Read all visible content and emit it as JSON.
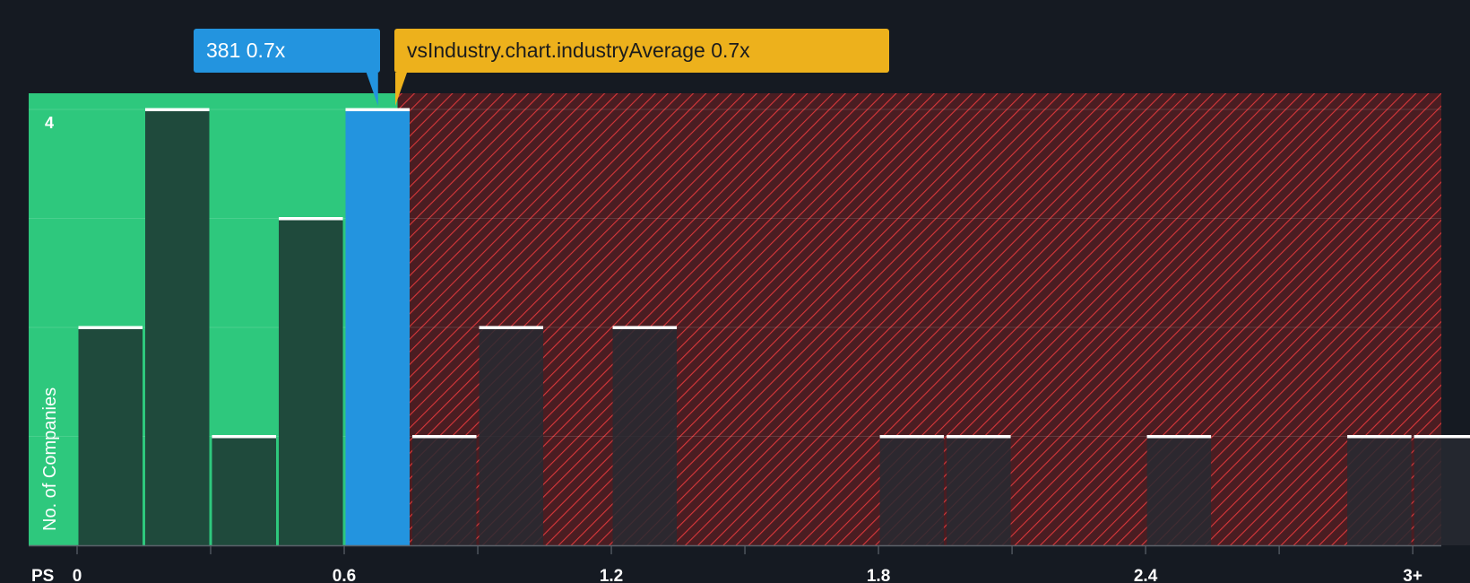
{
  "chart_data": {
    "type": "bar",
    "title": "",
    "xlabel": "PS",
    "ylabel": "No. of Companies",
    "xlim": [
      0,
      3.05
    ],
    "ylim": [
      0,
      4
    ],
    "x_ticks": [
      0,
      0.6,
      1.2,
      1.8,
      2.4,
      3
    ],
    "x_tick_labels": [
      "0",
      "0.6",
      "1.2",
      "1.8",
      "2.4",
      "3+"
    ],
    "y_tick_labels": [
      {
        "value": 4,
        "label": "4"
      }
    ],
    "bin_width": 0.15,
    "bins": [
      {
        "start": 0.0,
        "count": 2
      },
      {
        "start": 0.15,
        "count": 4
      },
      {
        "start": 0.3,
        "count": 1
      },
      {
        "start": 0.45,
        "count": 3
      },
      {
        "start": 0.6,
        "count": 4,
        "highlight": true
      },
      {
        "start": 0.75,
        "count": 1
      },
      {
        "start": 0.9,
        "count": 2
      },
      {
        "start": 1.2,
        "count": 2
      },
      {
        "start": 1.8,
        "count": 1
      },
      {
        "start": 1.95,
        "count": 1
      },
      {
        "start": 2.4,
        "count": 1
      },
      {
        "start": 2.85,
        "count": 1
      },
      {
        "start": 3.0,
        "count": 1
      }
    ],
    "company_value": 0.68,
    "industry_average": 0.72,
    "fair_region_end": 0.72,
    "company_callout": {
      "label": "381",
      "value": "0.7x"
    },
    "industry_callout": {
      "label": "vsIndustry.chart.industryAverage",
      "value": "0.7x"
    },
    "colors": {
      "background": "#151a22",
      "fair_zone": "#2ec87d",
      "fair_bar": "#1f4a3c",
      "expensive_zone": "#4a1d22",
      "hatch": "#d9373a",
      "expensive_bar": "#272a31",
      "highlight": "#2394df",
      "industry": "#edb11c",
      "bar_cap": "#ffffff",
      "axis": "#5c636b",
      "tick_text": "#ffffff"
    }
  }
}
